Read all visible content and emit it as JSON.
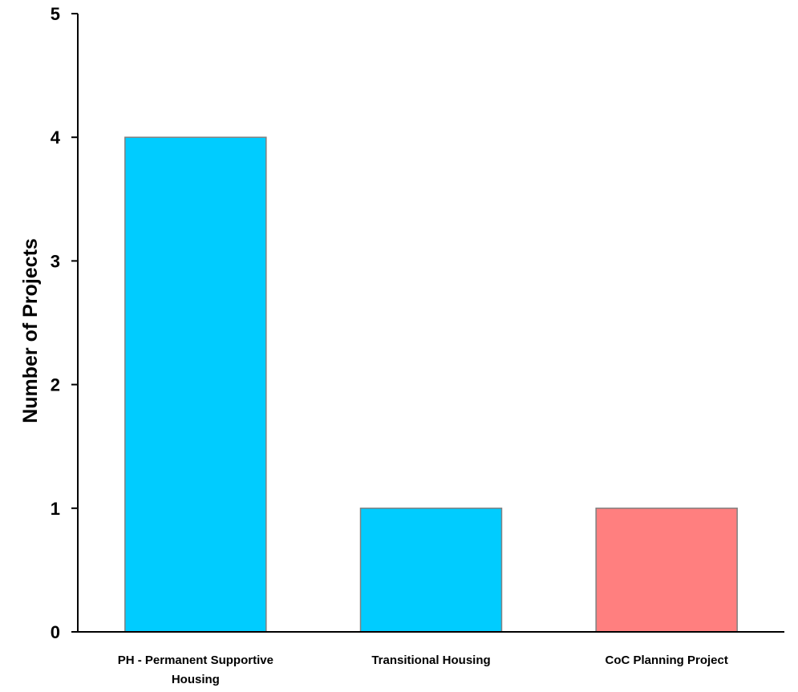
{
  "chart_data": {
    "type": "bar",
    "title": "",
    "xlabel": "",
    "ylabel": "Number of Projects",
    "ylim": [
      0,
      5
    ],
    "yticks": [
      0,
      1,
      2,
      3,
      4,
      5
    ],
    "grid": false,
    "categories": [
      [
        "PH - Permanent Supportive",
        "Housing"
      ],
      [
        "Transitional Housing"
      ],
      [
        "CoC Planning Project"
      ]
    ],
    "values": [
      4,
      1,
      1
    ],
    "colors": [
      "#00ccff",
      "#00ccff",
      "#ff7f7f"
    ],
    "bar_edge_color": "#808080"
  }
}
